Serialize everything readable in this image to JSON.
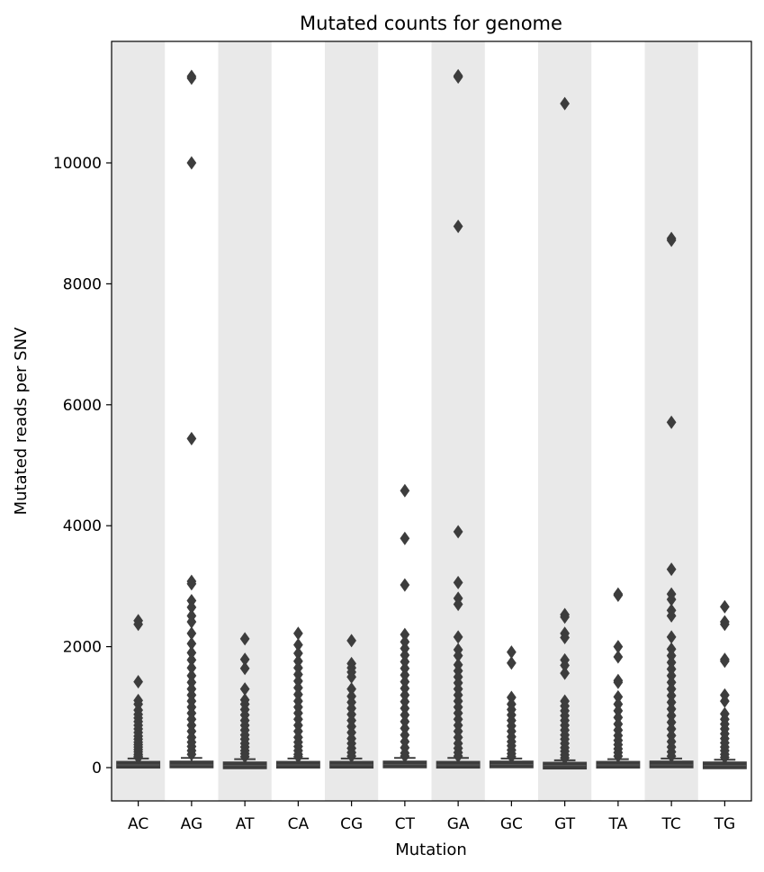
{
  "chart_data": {
    "type": "boxplot",
    "title": "Mutated counts for genome",
    "xlabel": "Mutation",
    "ylabel": "Mutated reads per SNV",
    "ylim": [
      -550,
      12000
    ],
    "yticks": [
      0,
      2000,
      4000,
      6000,
      8000,
      10000
    ],
    "grid": false,
    "alternating_band_color": "#e9e9e9",
    "box_color": "#3d3d3d",
    "categories": [
      "AC",
      "AG",
      "AT",
      "CA",
      "CG",
      "CT",
      "GA",
      "GC",
      "GT",
      "TA",
      "TC",
      "TG"
    ],
    "boxes": [
      {
        "category": "AC",
        "q1": 15,
        "median": 45,
        "q3": 85,
        "whisker_high": 150,
        "outliers": [
          2430,
          2370,
          1420,
          1110,
          1050,
          950,
          880,
          820,
          760,
          700,
          640,
          580,
          520,
          470,
          420,
          380,
          340,
          300,
          260,
          220,
          190,
          170
        ]
      },
      {
        "category": "AG",
        "q1": 15,
        "median": 45,
        "q3": 90,
        "whisker_high": 160,
        "outliers": [
          11430,
          11400,
          10000,
          5440,
          3080,
          3040,
          2760,
          2650,
          2510,
          2410,
          2220,
          2050,
          1900,
          1780,
          1650,
          1520,
          1410,
          1300,
          1200,
          1100,
          1000,
          900,
          800,
          700,
          600,
          500,
          420,
          350,
          280,
          220
        ]
      },
      {
        "category": "AT",
        "q1": 10,
        "median": 35,
        "q3": 75,
        "whisker_high": 140,
        "outliers": [
          2130,
          1790,
          1640,
          1300,
          1120,
          1050,
          960,
          870,
          780,
          700,
          620,
          540,
          470,
          400,
          340,
          280,
          230,
          180
        ]
      },
      {
        "category": "CA",
        "q1": 15,
        "median": 45,
        "q3": 85,
        "whisker_high": 150,
        "outliers": [
          2220,
          2030,
          1890,
          1760,
          1650,
          1540,
          1430,
          1320,
          1210,
          1100,
          1000,
          900,
          800,
          700,
          600,
          500,
          420,
          350,
          280,
          220,
          180
        ]
      },
      {
        "category": "CG",
        "q1": 15,
        "median": 45,
        "q3": 85,
        "whisker_high": 150,
        "outliers": [
          2100,
          1720,
          1650,
          1580,
          1500,
          1300,
          1180,
          1080,
          980,
          880,
          780,
          680,
          580,
          480,
          400,
          320,
          250,
          190
        ]
      },
      {
        "category": "CT",
        "q1": 15,
        "median": 50,
        "q3": 90,
        "whisker_high": 160,
        "outliers": [
          4580,
          3790,
          3020,
          2200,
          2080,
          1970,
          1860,
          1750,
          1640,
          1530,
          1420,
          1310,
          1200,
          1090,
          980,
          870,
          760,
          650,
          540,
          430,
          330,
          240,
          190
        ]
      },
      {
        "category": "GA",
        "q1": 15,
        "median": 45,
        "q3": 85,
        "whisker_high": 160,
        "outliers": [
          11440,
          11420,
          8950,
          3900,
          3060,
          2800,
          2700,
          2160,
          1950,
          1850,
          1700,
          1600,
          1500,
          1400,
          1300,
          1200,
          1100,
          1000,
          900,
          800,
          700,
          600,
          500,
          400,
          320,
          250,
          190
        ]
      },
      {
        "category": "GC",
        "q1": 20,
        "median": 50,
        "q3": 90,
        "whisker_high": 150,
        "outliers": [
          1910,
          1730,
          1160,
          1050,
          960,
          870,
          780,
          690,
          600,
          510,
          430,
          360,
          290,
          230,
          180
        ]
      },
      {
        "category": "GT",
        "q1": 10,
        "median": 35,
        "q3": 70,
        "whisker_high": 120,
        "outliers": [
          10980,
          2530,
          2490,
          2220,
          2150,
          1780,
          1690,
          1560,
          1100,
          1020,
          940,
          860,
          780,
          700,
          620,
          540,
          470,
          400,
          330,
          270,
          210,
          160
        ]
      },
      {
        "category": "TA",
        "q1": 15,
        "median": 45,
        "q3": 85,
        "whisker_high": 140,
        "outliers": [
          2870,
          2850,
          2000,
          1830,
          1440,
          1410,
          1170,
          1050,
          940,
          830,
          720,
          620,
          530,
          450,
          380,
          310,
          250,
          190
        ]
      },
      {
        "category": "TC",
        "q1": 15,
        "median": 45,
        "q3": 90,
        "whisker_high": 150,
        "outliers": [
          8750,
          8720,
          5710,
          3280,
          2870,
          2780,
          2600,
          2510,
          2160,
          1960,
          1850,
          1740,
          1630,
          1520,
          1410,
          1300,
          1190,
          1080,
          970,
          860,
          750,
          640,
          530,
          430,
          340,
          260,
          190
        ]
      },
      {
        "category": "TG",
        "q1": 10,
        "median": 35,
        "q3": 75,
        "whisker_high": 130,
        "outliers": [
          2660,
          2410,
          2370,
          1790,
          1760,
          1200,
          1100,
          890,
          800,
          720,
          640,
          560,
          480,
          410,
          340,
          280,
          220,
          170
        ]
      }
    ]
  }
}
